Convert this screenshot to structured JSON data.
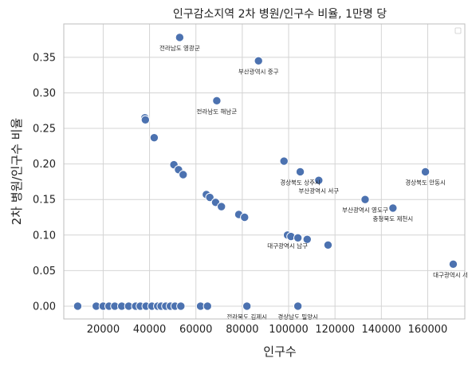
{
  "chart_data": {
    "type": "scatter",
    "title": "인구감소지역 2차 병원/인구수 비율, 1만명 당",
    "xlabel": "인구수",
    "ylabel": "2차 병원/인구수 비율",
    "xlim": [
      3000,
      176000
    ],
    "ylim": [
      -0.018,
      0.397
    ],
    "x_ticks": [
      20000,
      40000,
      60000,
      80000,
      100000,
      120000,
      140000,
      160000
    ],
    "x_tick_labels": [
      "20000",
      "40000",
      "60000",
      "80000",
      "100000",
      "120000",
      "140000",
      "160000"
    ],
    "y_ticks": [
      0.0,
      0.05,
      0.1,
      0.15,
      0.2,
      0.25,
      0.3,
      0.35
    ],
    "y_tick_labels": [
      "0.00",
      "0.05",
      "0.10",
      "0.15",
      "0.20",
      "0.25",
      "0.30",
      "0.35"
    ],
    "grid": true,
    "legend": "top-right (empty)",
    "points": [
      {
        "x": 53000,
        "y": 0.378,
        "label": "전라남도 영광군"
      },
      {
        "x": 87000,
        "y": 0.345,
        "label": "부산광역시 중구"
      },
      {
        "x": 69000,
        "y": 0.289,
        "label": "전라남도 해남군"
      },
      {
        "x": 38000,
        "y": 0.265
      },
      {
        "x": 38200,
        "y": 0.262
      },
      {
        "x": 42000,
        "y": 0.237
      },
      {
        "x": 50500,
        "y": 0.199
      },
      {
        "x": 52500,
        "y": 0.192
      },
      {
        "x": 54500,
        "y": 0.185
      },
      {
        "x": 98000,
        "y": 0.204
      },
      {
        "x": 105000,
        "y": 0.189,
        "label": "경상북도 상주시"
      },
      {
        "x": 113000,
        "y": 0.177,
        "label": "부산광역시 서구"
      },
      {
        "x": 159000,
        "y": 0.189,
        "label": "경상북도 안동시"
      },
      {
        "x": 64500,
        "y": 0.157
      },
      {
        "x": 66000,
        "y": 0.153
      },
      {
        "x": 68500,
        "y": 0.146
      },
      {
        "x": 71000,
        "y": 0.14
      },
      {
        "x": 78500,
        "y": 0.129
      },
      {
        "x": 81000,
        "y": 0.125
      },
      {
        "x": 133000,
        "y": 0.15,
        "label": "부산광역시 영도구"
      },
      {
        "x": 145000,
        "y": 0.138,
        "label": "충청북도 제천시"
      },
      {
        "x": 99500,
        "y": 0.1,
        "label": "대구광역시 남구"
      },
      {
        "x": 101000,
        "y": 0.098
      },
      {
        "x": 104000,
        "y": 0.096
      },
      {
        "x": 108000,
        "y": 0.094
      },
      {
        "x": 117000,
        "y": 0.086
      },
      {
        "x": 171000,
        "y": 0.059,
        "label": "대구광역시 서구"
      },
      {
        "x": 9000,
        "y": 0
      },
      {
        "x": 17000,
        "y": 0
      },
      {
        "x": 20000,
        "y": 0
      },
      {
        "x": 22500,
        "y": 0
      },
      {
        "x": 25000,
        "y": 0
      },
      {
        "x": 28000,
        "y": 0
      },
      {
        "x": 31000,
        "y": 0
      },
      {
        "x": 34000,
        "y": 0
      },
      {
        "x": 36000,
        "y": 0
      },
      {
        "x": 38500,
        "y": 0
      },
      {
        "x": 41000,
        "y": 0
      },
      {
        "x": 43500,
        "y": 0
      },
      {
        "x": 45000,
        "y": 0
      },
      {
        "x": 47000,
        "y": 0
      },
      {
        "x": 49000,
        "y": 0
      },
      {
        "x": 51000,
        "y": 0
      },
      {
        "x": 53500,
        "y": 0
      },
      {
        "x": 62000,
        "y": 0
      },
      {
        "x": 65000,
        "y": 0
      },
      {
        "x": 82000,
        "y": 0,
        "label": "전라북도 김제시"
      },
      {
        "x": 104000,
        "y": 0,
        "label": "경상남도 밀양시"
      }
    ],
    "annotation_offsets_note": "labels drawn below points"
  }
}
